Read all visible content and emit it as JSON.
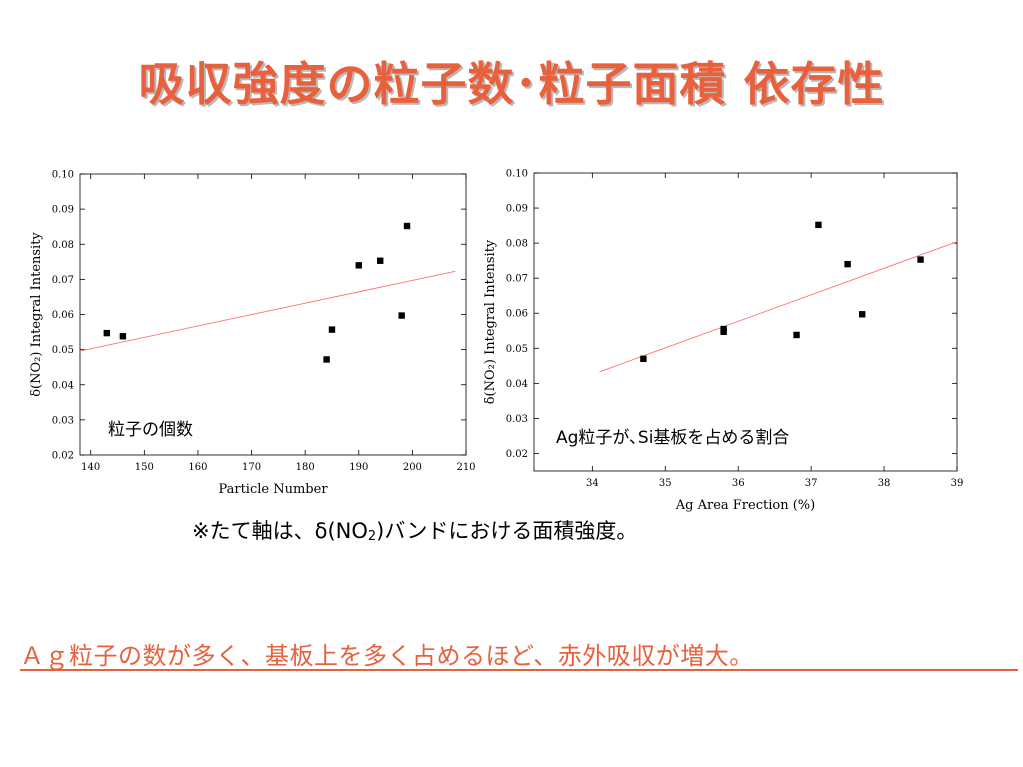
{
  "slide": {
    "title": "吸収強度の粒子数･粒子面積 依存性",
    "note": {
      "prefix": "※たて軸は、δ(NO",
      "sub": "2",
      "suffix": ")バンドにおける面積強度。"
    },
    "conclusion": "Ａｇ粒子の数が多く、基板上を多く占めるほど、赤外吸収が増大。",
    "colors": {
      "title": "#e8603c",
      "conclusion": "#e8603c",
      "fit_line": "#ff7070",
      "points": "#000000"
    }
  },
  "chart_data": [
    {
      "type": "scatter",
      "xlabel": "Particle Number",
      "ylabel": "δ(NO₂) Integral Intensity",
      "xlim": [
        138,
        210
      ],
      "ylim": [
        0.02,
        0.1
      ],
      "xticks": [
        140,
        150,
        160,
        170,
        180,
        190,
        200,
        210
      ],
      "xtick_labels": [
        "140",
        "150",
        "160",
        "170",
        "180",
        "190",
        "200",
        "210"
      ],
      "yticks": [
        0.02,
        0.03,
        0.04,
        0.05,
        0.06,
        0.07,
        0.08,
        0.09,
        0.1
      ],
      "ytick_labels": [
        "0.02",
        "0.03",
        "0.04",
        "0.05",
        "0.06",
        "0.07",
        "0.08",
        "0.09",
        "0.10"
      ],
      "grid": false,
      "annotation": "粒子の個数",
      "points": [
        {
          "x": 143,
          "y": 0.0547
        },
        {
          "x": 146,
          "y": 0.0538
        },
        {
          "x": 184,
          "y": 0.0472
        },
        {
          "x": 185,
          "y": 0.0557
        },
        {
          "x": 190,
          "y": 0.074
        },
        {
          "x": 194,
          "y": 0.0753
        },
        {
          "x": 198,
          "y": 0.0597
        },
        {
          "x": 199,
          "y": 0.0852
        }
      ],
      "fit_line": {
        "x": [
          138,
          208
        ],
        "y": [
          0.0496,
          0.0723
        ]
      }
    },
    {
      "type": "scatter",
      "xlabel": "Ag Area Frection (%)",
      "ylabel": "δ(NO₂) Integral Intensity",
      "xlim": [
        33.2,
        39
      ],
      "ylim": [
        0.015,
        0.1
      ],
      "xticks": [
        34,
        35,
        36,
        37,
        38,
        39
      ],
      "xtick_labels": [
        "34",
        "35",
        "36",
        "37",
        "38",
        "39"
      ],
      "yticks": [
        0.02,
        0.03,
        0.04,
        0.05,
        0.06,
        0.07,
        0.08,
        0.09,
        0.1
      ],
      "ytick_labels": [
        "0.02",
        "0.03",
        "0.04",
        "0.05",
        "0.06",
        "0.07",
        "0.08",
        "0.09",
        "0.10"
      ],
      "grid": false,
      "annotation": "Ag粒子が､Si基板を占める割合",
      "points": [
        {
          "x": 34.7,
          "y": 0.047
        },
        {
          "x": 35.8,
          "y": 0.0555
        },
        {
          "x": 35.8,
          "y": 0.0547
        },
        {
          "x": 36.8,
          "y": 0.0538
        },
        {
          "x": 37.1,
          "y": 0.0852
        },
        {
          "x": 37.5,
          "y": 0.074
        },
        {
          "x": 37.7,
          "y": 0.0597
        },
        {
          "x": 38.5,
          "y": 0.0753
        }
      ],
      "fit_line": {
        "x": [
          34.1,
          39.0
        ],
        "y": [
          0.0433,
          0.0804
        ]
      }
    }
  ]
}
